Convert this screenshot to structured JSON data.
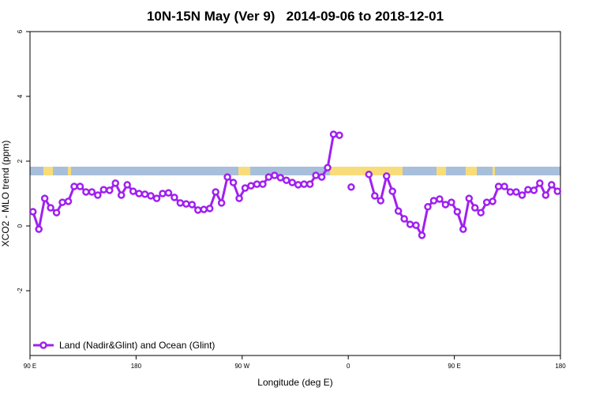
{
  "chart_data": {
    "type": "line",
    "title": "10N-15N May (Ver 9)   2014-09-06 to 2018-12-01",
    "xlabel": "Longitude (deg E)",
    "ylabel": "XCO2 - MLO trend (ppm)",
    "xlim": [
      90,
      540
    ],
    "ylim": [
      -4,
      6
    ],
    "xticks": [
      {
        "value": 90,
        "label": "90 E"
      },
      180,
      {
        "value": 270,
        "label": "90 W"
      },
      {
        "value": 360,
        "label": "0"
      },
      {
        "value": 450,
        "label": "90 E"
      },
      {
        "value": 540,
        "label": "180"
      }
    ],
    "yticks": [
      6,
      4,
      2,
      0,
      -2
    ],
    "x": [
      92.5,
      97.5,
      102.5,
      107.5,
      112.5,
      117.5,
      122.5,
      127.5,
      132.5,
      137.5,
      142.5,
      147.5,
      152.5,
      157.5,
      162.5,
      167.5,
      172.5,
      177.5,
      182.5,
      187.5,
      192.5,
      197.5,
      202.5,
      207.5,
      212.5,
      217.5,
      222.5,
      227.5,
      232.5,
      237.5,
      242.5,
      247.5,
      252.5,
      257.5,
      262.5,
      267.5,
      272.5,
      277.5,
      282.5,
      287.5,
      292.5,
      297.5,
      302.5,
      307.5,
      312.5,
      317.5,
      322.5,
      327.5,
      332.5,
      337.5,
      342.5,
      347.5,
      352.5,
      357.5,
      362.5,
      367.5,
      372.5,
      377.5,
      382.5,
      387.5,
      392.5,
      397.5,
      402.5,
      407.5,
      412.5,
      417.5,
      422.5,
      427.5,
      432.5,
      437.5,
      442.5,
      447.5,
      452.5,
      457.5,
      462.5,
      467.5,
      472.5,
      477.5,
      482.5,
      487.5,
      492.5,
      497.5,
      502.5,
      507.5,
      512.5,
      517.5,
      522.5,
      527.5,
      532.5,
      537.5
    ],
    "series": [
      {
        "name": "Land (Nadir&Glint) and Ocean (Glint)",
        "color": "#a020f0",
        "values": [
          0.44,
          -0.1,
          0.85,
          0.56,
          0.41,
          0.73,
          0.76,
          1.22,
          1.22,
          1.05,
          1.05,
          0.95,
          1.12,
          1.1,
          1.32,
          0.95,
          1.27,
          1.07,
          1.0,
          0.98,
          0.93,
          0.85,
          1.0,
          1.02,
          0.88,
          0.71,
          0.68,
          0.66,
          0.49,
          0.51,
          0.54,
          1.05,
          0.71,
          1.51,
          1.34,
          0.85,
          1.17,
          1.24,
          1.29,
          1.29,
          1.51,
          1.56,
          1.49,
          1.41,
          1.34,
          1.27,
          1.29,
          1.29,
          1.56,
          1.51,
          1.8,
          2.83,
          2.8,
          null,
          1.2,
          null,
          null,
          1.59,
          0.93,
          0.78,
          1.54,
          1.07,
          0.46,
          0.22,
          0.05,
          0.02,
          -0.29,
          0.59,
          0.78,
          0.83,
          0.66,
          0.73,
          0.44,
          -0.1,
          0.85,
          0.56,
          0.41,
          0.73,
          0.76,
          1.22,
          1.22,
          1.05,
          1.05,
          0.95,
          1.12,
          1.1,
          1.32,
          0.95,
          1.27,
          1.07
        ]
      }
    ]
  }
}
